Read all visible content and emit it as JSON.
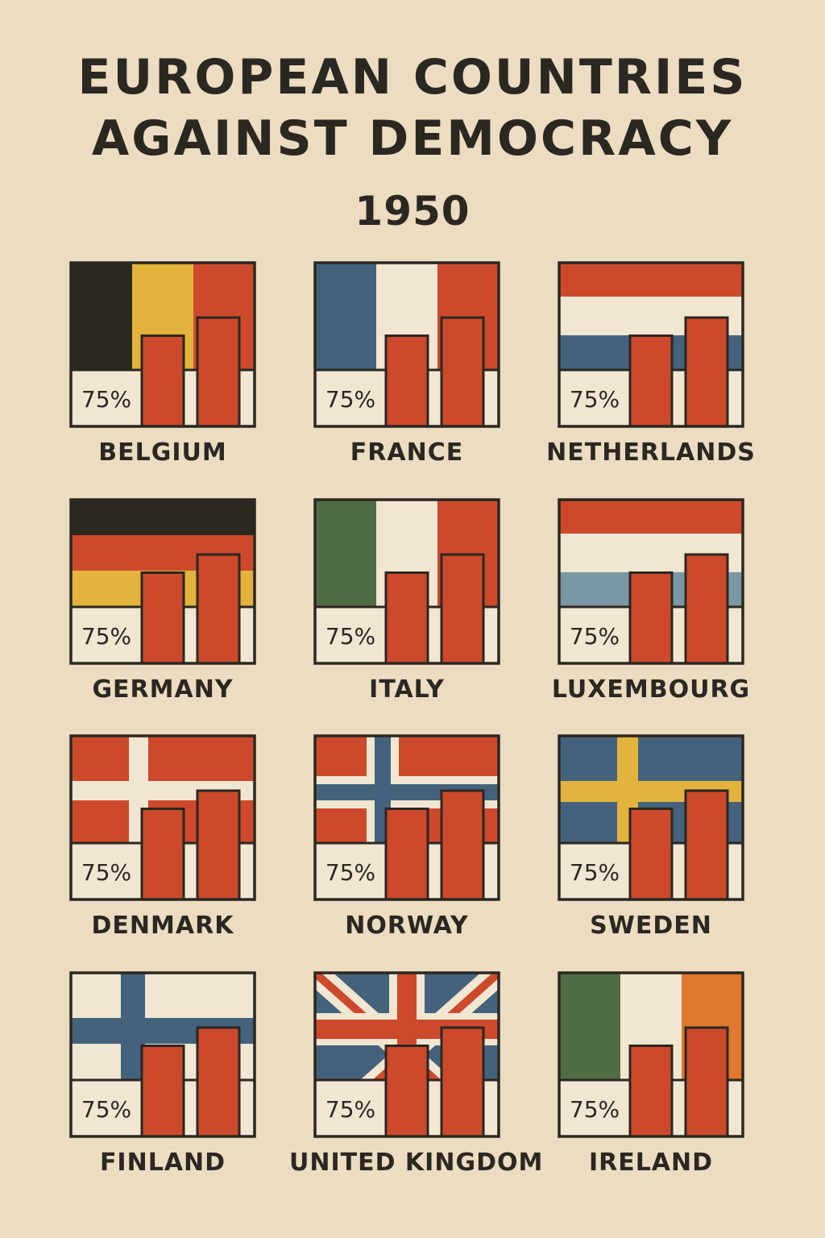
{
  "colors": {
    "background": "#ecdcc2",
    "ink": "#2b2721",
    "bar": "#cc4a2b",
    "panel": "#f1e6d2"
  },
  "title_lines": [
    "EUROPEAN COUNTRIES",
    "AGAINST DEMOCRACY"
  ],
  "year": "1950",
  "chart_data": {
    "type": "bar",
    "title": "EUROPEAN COUNTRIES AGAINST DEMOCRACY",
    "subtitle": "1950",
    "categories": [
      "BELGIUM",
      "FRANCE",
      "NETHERLANDS",
      "GERMANY",
      "ITALY",
      "LUXEMBOURG",
      "DENMARK",
      "NORWAY",
      "SWEDEN",
      "FINLAND",
      "UNITED KINGDOM",
      "IRELAND"
    ],
    "countries": [
      {
        "name": "BELGIUM",
        "label": "75%",
        "flag": "belgium",
        "bars": [
          0.75,
          0.9
        ]
      },
      {
        "name": "FRANCE",
        "label": "75%",
        "flag": "france",
        "bars": [
          0.75,
          0.9
        ]
      },
      {
        "name": "NETHERLANDS",
        "label": "75%",
        "flag": "netherlands",
        "bars": [
          0.75,
          0.9
        ]
      },
      {
        "name": "GERMANY",
        "label": "75%",
        "flag": "germany",
        "bars": [
          0.75,
          0.9
        ]
      },
      {
        "name": "ITALY",
        "label": "75%",
        "flag": "italy",
        "bars": [
          0.75,
          0.9
        ]
      },
      {
        "name": "LUXEMBOURG",
        "label": "75%",
        "flag": "luxembourg",
        "bars": [
          0.75,
          0.9
        ]
      },
      {
        "name": "DENMARK",
        "label": "75%",
        "flag": "denmark",
        "bars": [
          0.75,
          0.9
        ]
      },
      {
        "name": "NORWAY",
        "label": "75%",
        "flag": "norway",
        "bars": [
          0.75,
          0.9
        ]
      },
      {
        "name": "SWEDEN",
        "label": "75%",
        "flag": "sweden",
        "bars": [
          0.75,
          0.9
        ]
      },
      {
        "name": "FINLAND",
        "label": "75%",
        "flag": "finland",
        "bars": [
          0.75,
          0.9
        ]
      },
      {
        "name": "UNITED KINGDOM",
        "label": "75%",
        "flag": "united-kingdom",
        "bars": [
          0.75,
          0.9
        ]
      },
      {
        "name": "IRELAND",
        "label": "75%",
        "flag": "ireland",
        "bars": [
          0.75,
          0.9
        ]
      }
    ]
  }
}
